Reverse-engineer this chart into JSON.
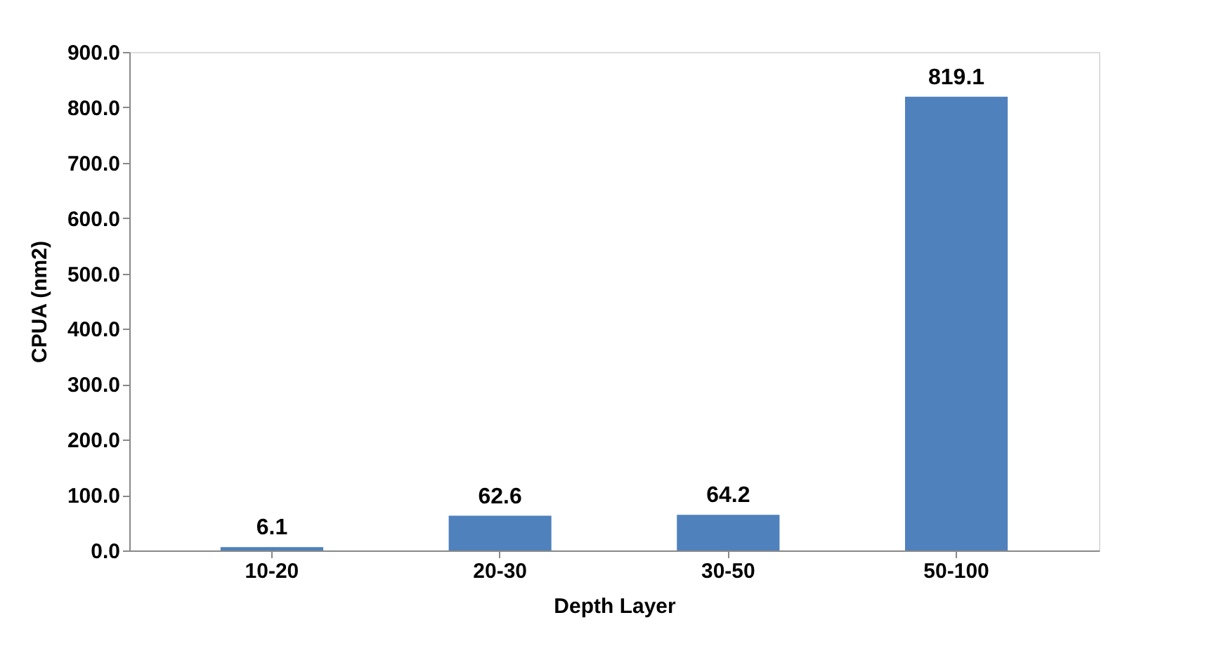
{
  "chart_data": {
    "type": "bar",
    "xlabel": "Depth Layer",
    "ylabel": "CPUA (nm2)",
    "categories": [
      "10-20",
      "20-30",
      "30-50",
      "50-100"
    ],
    "values": [
      6.1,
      62.6,
      64.2,
      819.1
    ],
    "color": "#4f81bd",
    "ylim": [
      0,
      900
    ],
    "yticks": [
      {
        "value": 0,
        "label": "0.0"
      },
      {
        "value": 100,
        "label": "100.0"
      },
      {
        "value": 200,
        "label": "200.0"
      },
      {
        "value": 300,
        "label": "300.0"
      },
      {
        "value": 400,
        "label": "400.0"
      },
      {
        "value": 500,
        "label": "500.0"
      },
      {
        "value": 600,
        "label": "600.0"
      },
      {
        "value": 700,
        "label": "700.0"
      },
      {
        "value": 800,
        "label": "800.0"
      },
      {
        "value": 900,
        "label": "900.0"
      }
    ],
    "grid": false,
    "data_labels": true
  }
}
